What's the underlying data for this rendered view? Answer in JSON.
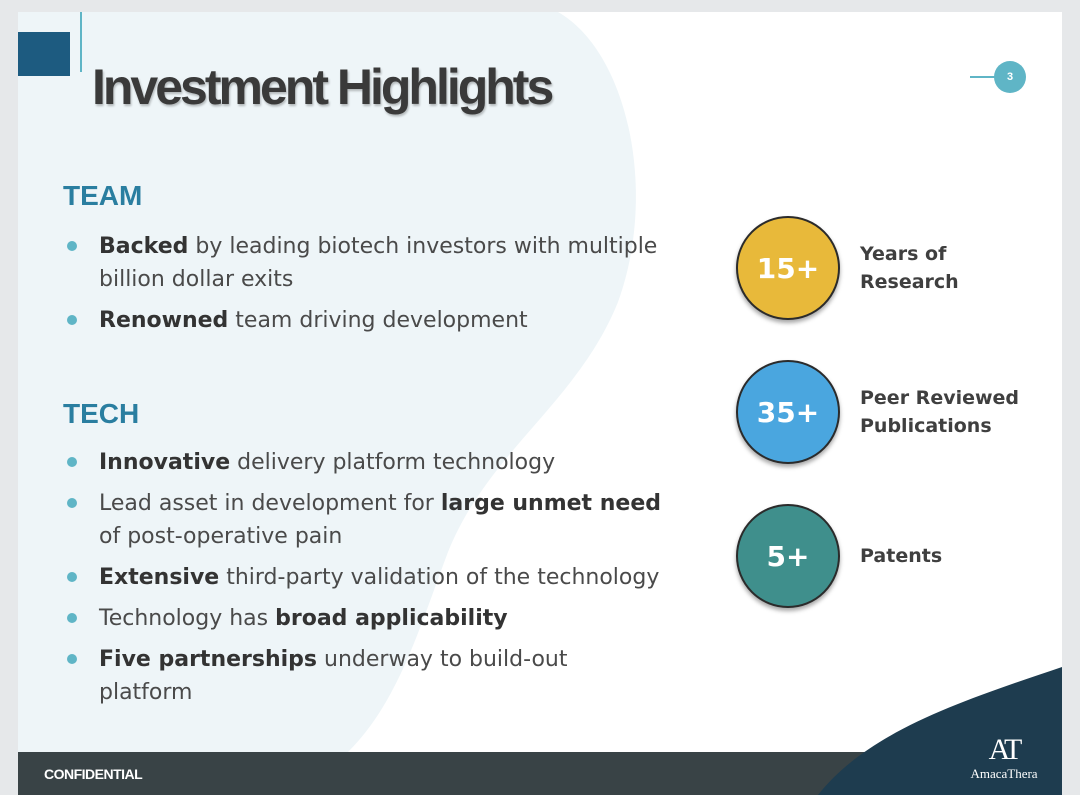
{
  "slide": {
    "title": "Investment Highlights",
    "page_number": "3",
    "footer_label": "CONFIDENTIAL",
    "logo_mark": "AT",
    "logo_name": "AmacaThera"
  },
  "team": {
    "heading": "TEAM",
    "bullets": [
      {
        "bold": "Backed",
        "rest": " by leading biotech investors with multiple billion dollar exits"
      },
      {
        "bold": "Renowned",
        "rest": " team driving development"
      }
    ]
  },
  "tech": {
    "heading": "TECH",
    "bullets": [
      {
        "pre": "",
        "bold": "Innovative",
        "post": " delivery platform technology"
      },
      {
        "pre": "Lead asset in development for ",
        "bold": "large unmet need",
        "post": " of post-operative pain"
      },
      {
        "pre": "",
        "bold": "Extensive",
        "post": " third-party validation of the technology"
      },
      {
        "pre": "Technology has ",
        "bold": "broad applicability",
        "post": ""
      },
      {
        "pre": "",
        "bold": "Five partnerships",
        "post": " underway to build-out platform"
      }
    ]
  },
  "stats": [
    {
      "value": "15+",
      "label": "Years of\nResearch",
      "color": "#e8b93a"
    },
    {
      "value": "35+",
      "label": "Peer Reviewed\nPublications",
      "color": "#4aa6df"
    },
    {
      "value": "5+",
      "label": "Patents",
      "color": "#3f8f8c"
    }
  ],
  "colors": {
    "accent": "#5fb5c6",
    "heading": "#2a7ea0",
    "navy": "#1d5b80",
    "footer": "#394346"
  }
}
